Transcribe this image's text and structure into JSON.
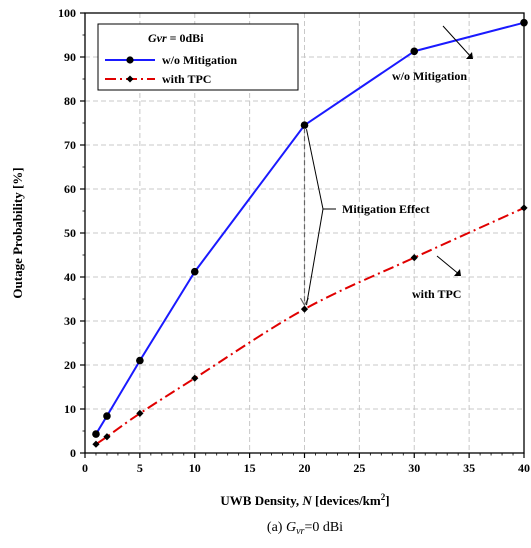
{
  "chart_data": {
    "type": "line",
    "x": [
      1,
      2,
      5,
      10,
      20,
      30,
      40
    ],
    "series": [
      {
        "name": "w/o Mitigation",
        "color": "#1a1aff",
        "line": "solid",
        "marker": "circle",
        "values": [
          4.3,
          8.4,
          21.0,
          41.2,
          74.5,
          91.3,
          97.8
        ]
      },
      {
        "name": "with TPC",
        "color": "#e00000",
        "line": "dash-dot",
        "marker": "diamond",
        "values": [
          2.0,
          3.7,
          9.0,
          17.0,
          32.7,
          44.4,
          55.7
        ]
      }
    ],
    "xlim": [
      0,
      40
    ],
    "ylim": [
      0,
      100
    ],
    "xticks": [
      "0",
      "5",
      "10",
      "15",
      "20",
      "25",
      "30",
      "35",
      "40"
    ],
    "yticks": [
      "0",
      "10",
      "20",
      "30",
      "40",
      "50",
      "60",
      "70",
      "80",
      "90",
      "100"
    ],
    "xlabel": {
      "prefix": "UWB Density, ",
      "var": "N",
      "suffix": " [devices/km",
      "sup": "2",
      "end": "]"
    },
    "ylabel": "Outage Probability [%]",
    "grid": true,
    "legend": {
      "position": "top-left",
      "title_var": "Gvr",
      "title_rest": " = 0dBi",
      "entries": [
        "w/o Mitigation",
        "with TPC"
      ]
    },
    "annotations": {
      "wo_label": "w/o Mitigation",
      "tpc_label": "with TPC",
      "effect_label": "Mitigation Effect"
    },
    "caption": {
      "prefix": "(a)  ",
      "var": "G",
      "sub": "vr",
      "rest": "=0  dBi"
    }
  }
}
